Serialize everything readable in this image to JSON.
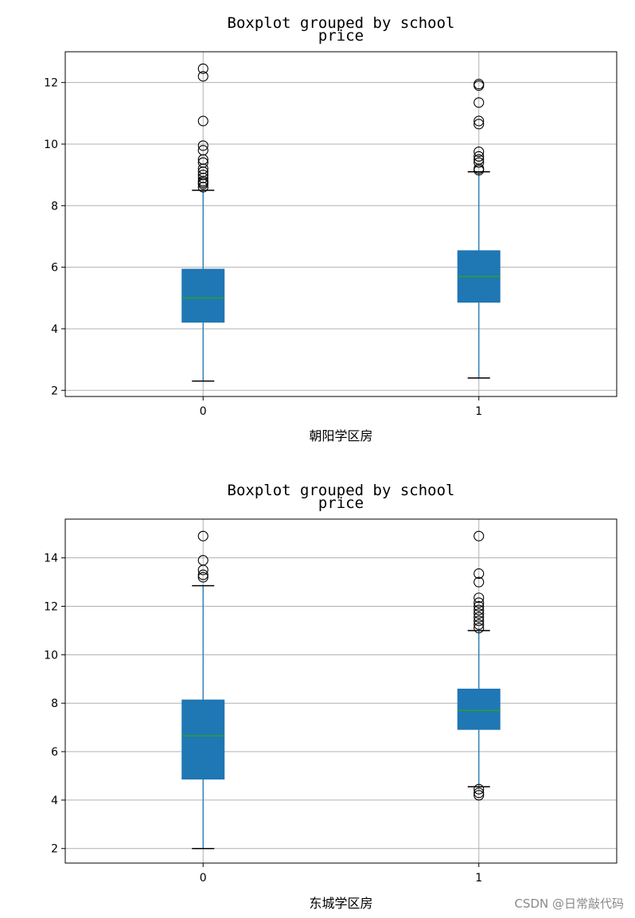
{
  "chart_data": [
    {
      "type": "box",
      "title": "Boxplot grouped by school",
      "subtitle": "price",
      "xlabel": "朝阳学区房",
      "ylabel": "",
      "categories": [
        "0",
        "1"
      ],
      "ylim": [
        1.8,
        13.0
      ],
      "yticks": [
        "2",
        "4",
        "6",
        "8",
        "10",
        "12"
      ],
      "grid": true,
      "boxes": [
        {
          "category": "0",
          "whisker_low": 2.3,
          "q1": 4.2,
          "median": 5.0,
          "q3": 5.95,
          "whisker_high": 8.5,
          "outliers": [
            8.6,
            8.7,
            8.75,
            8.8,
            8.9,
            9.0,
            9.1,
            9.2,
            9.4,
            9.5,
            9.8,
            9.95,
            10.75,
            12.2,
            12.45
          ]
        },
        {
          "category": "1",
          "whisker_low": 2.4,
          "q1": 4.85,
          "median": 5.7,
          "q3": 6.55,
          "whisker_high": 9.1,
          "outliers": [
            9.15,
            9.2,
            9.4,
            9.5,
            9.6,
            9.75,
            10.65,
            10.75,
            11.35,
            11.9,
            11.95
          ]
        }
      ]
    },
    {
      "type": "box",
      "title": "Boxplot grouped by school",
      "subtitle": "price",
      "xlabel": "东城学区房",
      "ylabel": "",
      "categories": [
        "0",
        "1"
      ],
      "ylim": [
        1.4,
        15.6
      ],
      "yticks": [
        "2",
        "4",
        "6",
        "8",
        "10",
        "12",
        "14"
      ],
      "grid": true,
      "boxes": [
        {
          "category": "0",
          "whisker_low": 2.0,
          "q1": 4.85,
          "median": 6.65,
          "q3": 8.15,
          "whisker_high": 12.85,
          "outliers": [
            13.2,
            13.3,
            13.5,
            13.9,
            14.9
          ]
        },
        {
          "category": "1",
          "whisker_low": 4.55,
          "q1": 6.9,
          "median": 7.7,
          "q3": 8.6,
          "whisker_high": 11.0,
          "outliers": [
            4.2,
            4.3,
            4.45,
            11.1,
            11.25,
            11.4,
            11.55,
            11.7,
            11.85,
            12.0,
            12.15,
            12.35,
            13.0,
            13.35,
            14.9
          ]
        }
      ]
    }
  ],
  "watermark": "CSDN @日常敲代码",
  "colors": {
    "box": "#1f77b4",
    "median": "#2ca02c",
    "whisker": "#1f77b4",
    "cap": "#000000",
    "flier": "#000000",
    "grid": "#b0b0b0"
  }
}
